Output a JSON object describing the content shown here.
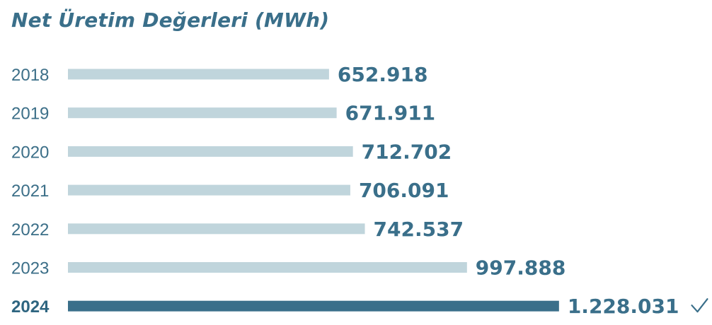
{
  "title": "Net Üretim Değerleri (MWh)",
  "colors": {
    "bar": "#c0d5dc",
    "bar_highlight": "#3a6f8a",
    "text": "#3a6f8a"
  },
  "chart_data": {
    "type": "bar",
    "orientation": "horizontal",
    "title": "Net Üretim Değerleri (MWh)",
    "categories": [
      "2018",
      "2019",
      "2020",
      "2021",
      "2022",
      "2023",
      "2024"
    ],
    "values": [
      652918,
      671911,
      712702,
      706091,
      742537,
      997888,
      1228031
    ],
    "value_labels": [
      "652.918",
      "671.911",
      "712.702",
      "706.091",
      "742.537",
      "997.888",
      "1.228.031"
    ],
    "highlight": "2024",
    "highlight_icon": "check-icon",
    "xlabel": "",
    "ylabel": "",
    "grid": false
  }
}
